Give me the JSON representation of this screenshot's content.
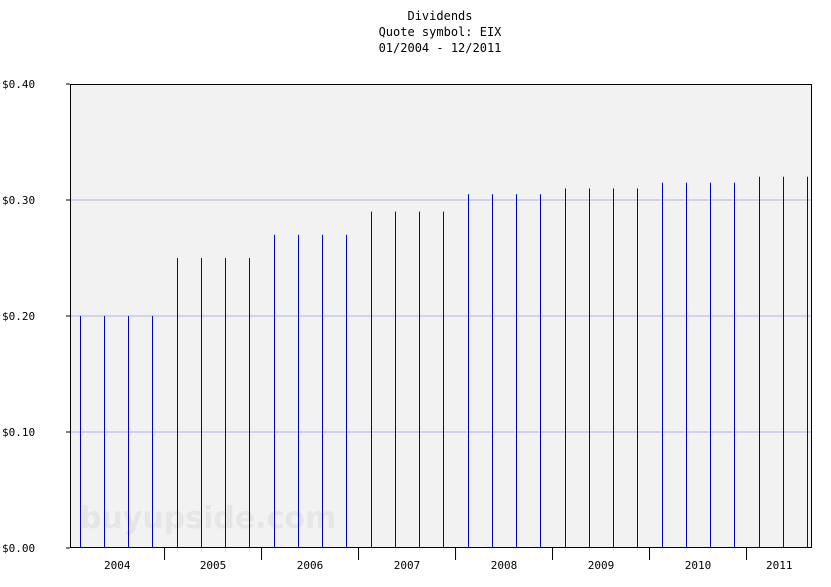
{
  "chart_data": {
    "type": "bar",
    "title": "Dividends",
    "subtitle_lines": [
      "Quote symbol: EIX",
      "01/2004 - 12/2011"
    ],
    "xlabel": "",
    "ylabel": "",
    "ylim": [
      0,
      0.4
    ],
    "y_ticks": [
      "$0.00",
      "$0.10",
      "$0.20",
      "$0.30",
      "$0.40"
    ],
    "x_ticks": [
      "2004",
      "2005",
      "2006",
      "2007",
      "2008",
      "2009",
      "2010",
      "2011"
    ],
    "x_range": [
      2003.9,
      2011.55
    ],
    "grid": true,
    "watermark": "buyupside.com",
    "series": [
      {
        "x": [
          2004.0,
          2004.25,
          2004.5,
          2004.75,
          2005.0,
          2005.25,
          2005.5,
          2005.75,
          2006.0,
          2006.25,
          2006.5,
          2006.75,
          2007.0,
          2007.25,
          2007.5,
          2007.75,
          2008.0,
          2008.25,
          2008.5,
          2008.75,
          2009.0,
          2009.25,
          2009.5,
          2009.75,
          2010.0,
          2010.25,
          2010.5,
          2010.75,
          2011.0,
          2011.25,
          2011.5
        ],
        "values": [
          0.2,
          0.2,
          0.2,
          0.2,
          0.25,
          0.25,
          0.25,
          0.25,
          0.27,
          0.27,
          0.27,
          0.27,
          0.29,
          0.29,
          0.29,
          0.29,
          0.305,
          0.305,
          0.305,
          0.305,
          0.31,
          0.31,
          0.31,
          0.31,
          0.315,
          0.315,
          0.315,
          0.315,
          0.32,
          0.32,
          0.32
        ]
      }
    ],
    "colors": {
      "bars": "#0000cc",
      "plot_bg": "#f2f2f2",
      "grid": "#b3b3e6",
      "axis": "#000000"
    }
  }
}
